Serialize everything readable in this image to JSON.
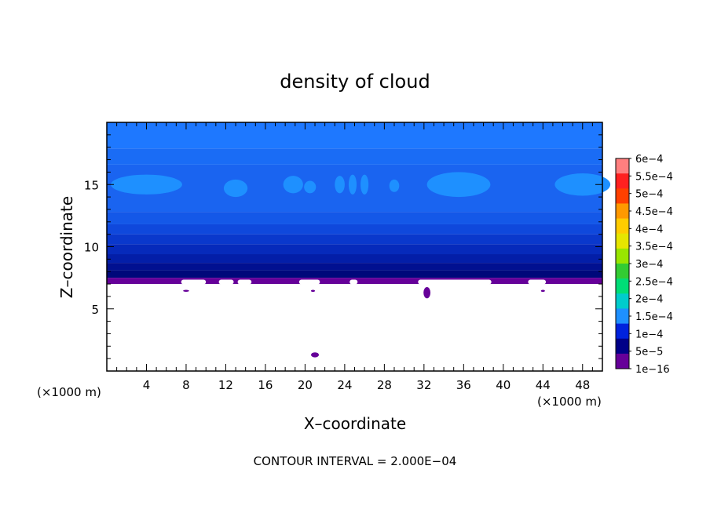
{
  "chart_data": {
    "type": "heatmap",
    "title": "density of cloud",
    "xlabel": "X–coordinate",
    "ylabel": "Z–coordinate",
    "x_unit_left": "(×1000 m)",
    "x_unit_right": "(×1000 m)",
    "xlim": [
      0,
      50
    ],
    "ylim": [
      0,
      20
    ],
    "x_ticks": [
      4,
      8,
      12,
      16,
      20,
      24,
      28,
      32,
      36,
      40,
      44,
      48
    ],
    "y_ticks": [
      5,
      10,
      15
    ],
    "footer": "CONTOUR INTERVAL = 2.000E−04",
    "cloud_base_z": 7.0,
    "colorbar": {
      "labels": [
        "6e−4",
        "5.5e−4",
        "5e−4",
        "4.5e−4",
        "4e−4",
        "3.5e−4",
        "3e−4",
        "2.5e−4",
        "2e−4",
        "1.5e−4",
        "1e−4",
        "5e−5",
        "1e−16"
      ],
      "colors": [
        "#ff7f7f",
        "#ff2020",
        "#ff4000",
        "#ff9900",
        "#ffcc00",
        "#e6e600",
        "#99e600",
        "#33cc33",
        "#00dd77",
        "#00cccc",
        "#1e90ff",
        "#0022dd",
        "#000088",
        "#660099"
      ]
    },
    "layers": [
      {
        "z0": 17.9,
        "z1": 20.0,
        "color": "#1e78ff"
      },
      {
        "z0": 16.6,
        "z1": 17.9,
        "color": "#1a6cf5"
      },
      {
        "z0": 12.8,
        "z1": 16.6,
        "color": "#1a64f0"
      },
      {
        "z0": 11.8,
        "z1": 12.8,
        "color": "#1458e8"
      },
      {
        "z0": 11.0,
        "z1": 11.8,
        "color": "#0f48dc"
      },
      {
        "z0": 10.2,
        "z1": 11.0,
        "color": "#0a38cc"
      },
      {
        "z0": 9.4,
        "z1": 10.2,
        "color": "#062abb"
      },
      {
        "z0": 8.7,
        "z1": 9.4,
        "color": "#031ea8"
      },
      {
        "z0": 8.1,
        "z1": 8.7,
        "color": "#011090"
      },
      {
        "z0": 7.5,
        "z1": 8.1,
        "color": "#00087a"
      },
      {
        "z0": 7.0,
        "z1": 7.5,
        "color": "#660099"
      }
    ],
    "patches": [
      {
        "x": 4.0,
        "z": 15.0,
        "rx": 3.6,
        "rz": 0.8,
        "color": "#1e90ff"
      },
      {
        "x": 13.0,
        "z": 14.7,
        "rx": 1.2,
        "rz": 0.7,
        "color": "#1e90ff"
      },
      {
        "x": 18.8,
        "z": 15.0,
        "rx": 1.0,
        "rz": 0.7,
        "color": "#1e90ff"
      },
      {
        "x": 20.5,
        "z": 14.8,
        "rx": 0.6,
        "rz": 0.5,
        "color": "#1e90ff"
      },
      {
        "x": 23.5,
        "z": 15.0,
        "rx": 0.5,
        "rz": 0.7,
        "color": "#1e90ff"
      },
      {
        "x": 24.8,
        "z": 15.0,
        "rx": 0.4,
        "rz": 0.8,
        "color": "#1e90ff"
      },
      {
        "x": 26.0,
        "z": 15.0,
        "rx": 0.4,
        "rz": 0.8,
        "color": "#1e90ff"
      },
      {
        "x": 29.0,
        "z": 14.9,
        "rx": 0.5,
        "rz": 0.5,
        "color": "#1e90ff"
      },
      {
        "x": 35.5,
        "z": 15.0,
        "rx": 3.2,
        "rz": 1.0,
        "color": "#1e90ff"
      },
      {
        "x": 48.0,
        "z": 15.0,
        "rx": 2.8,
        "rz": 0.9,
        "color": "#1e90ff"
      },
      {
        "x": 21.0,
        "z": 1.3,
        "rx": 0.4,
        "rz": 0.2,
        "color": "#660099"
      },
      {
        "x": 32.3,
        "z": 6.3,
        "rx": 0.35,
        "rz": 0.45,
        "color": "#660099"
      },
      {
        "x": 8.0,
        "z": 6.45,
        "rx": 0.3,
        "rz": 0.08,
        "color": "#660099"
      },
      {
        "x": 20.8,
        "z": 6.45,
        "rx": 0.2,
        "rz": 0.08,
        "color": "#660099"
      },
      {
        "x": 44.0,
        "z": 6.45,
        "rx": 0.2,
        "rz": 0.08,
        "color": "#660099"
      }
    ],
    "base_notches": [
      {
        "x0": 7.5,
        "x1": 10.0
      },
      {
        "x0": 11.3,
        "x1": 12.8
      },
      {
        "x0": 13.2,
        "x1": 14.6
      },
      {
        "x0": 19.4,
        "x1": 21.5
      },
      {
        "x0": 24.5,
        "x1": 25.3
      },
      {
        "x0": 31.4,
        "x1": 38.8
      },
      {
        "x0": 42.5,
        "x1": 44.3
      }
    ]
  }
}
